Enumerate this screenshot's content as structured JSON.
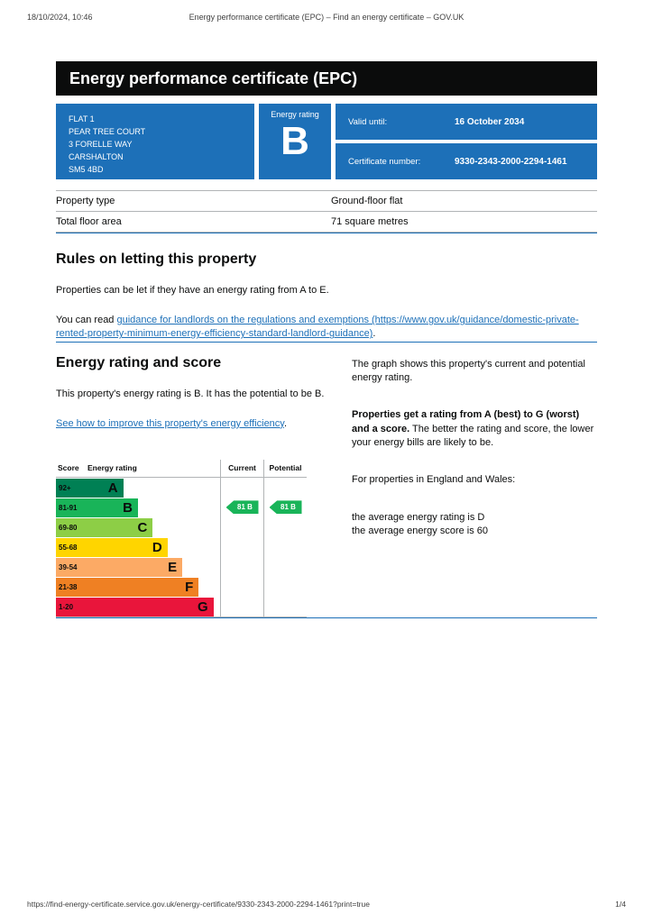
{
  "print_header": {
    "datetime": "18/10/2024, 10:46",
    "title": "Energy performance certificate (EPC) – Find an energy certificate – GOV.UK"
  },
  "banner": {
    "title": "Energy performance certificate (EPC)"
  },
  "summary": {
    "address_lines": [
      "FLAT 1",
      "PEAR TREE COURT",
      "3 FORELLE WAY",
      "CARSHALTON",
      "SM5 4BD"
    ],
    "energy_rating_label": "Energy rating",
    "energy_rating": "B",
    "valid_until_label": "Valid until:",
    "valid_until": "16 October 2034",
    "certificate_number_label": "Certificate number:",
    "certificate_number": "9330-2343-2000-2294-1461"
  },
  "property_table": {
    "rows": [
      {
        "label": "Property type",
        "value": "Ground-floor flat"
      },
      {
        "label": "Total floor area",
        "value": "71 square metres"
      }
    ]
  },
  "letting_rules": {
    "heading": "Rules on letting this property",
    "paragraph": "Properties can be let if they have an energy rating from A to E.",
    "link_intro": "You can read ",
    "link_text": "guidance for landlords on the regulations and exemptions (https://www.gov.uk/guidance/domestic-private-rented-property-minimum-energy-efficiency-standard-landlord-guidance)",
    "link_suffix": "."
  },
  "rating_section": {
    "heading": "Energy rating and score",
    "paragraph": "This property's energy rating is B. It has the potential to be B.",
    "link_text": "See how to improve this property's energy efficiency",
    "link_suffix": ".",
    "right_col": {
      "p1": "The graph shows this property's current and potential energy rating.",
      "p2_bold": "Properties get a rating from A (best) to G (worst) and a score.",
      "p2_rest": " The better the rating and score, the lower your energy bills are likely to be.",
      "p3": "For properties in England and Wales:",
      "p4_line1": "the average energy rating is D",
      "p4_line2": "the average energy score is 60"
    }
  },
  "chart_data": {
    "type": "epc-bands",
    "headers": {
      "score": "Score",
      "rating": "Energy rating",
      "current": "Current",
      "potential": "Potential"
    },
    "bands": [
      {
        "score": "92+",
        "letter": "A",
        "color": "#008054",
        "width_pct": 41
      },
      {
        "score": "81-91",
        "letter": "B",
        "color": "#19b459",
        "width_pct": 50
      },
      {
        "score": "69-80",
        "letter": "C",
        "color": "#8dce46",
        "width_pct": 59
      },
      {
        "score": "55-68",
        "letter": "D",
        "color": "#ffd500",
        "width_pct": 68
      },
      {
        "score": "39-54",
        "letter": "E",
        "color": "#fcaa65",
        "width_pct": 77
      },
      {
        "score": "21-38",
        "letter": "F",
        "color": "#ef8023",
        "width_pct": 87
      },
      {
        "score": "1-20",
        "letter": "G",
        "color": "#e9153b",
        "width_pct": 96
      }
    ],
    "current": {
      "score": 81,
      "letter": "B",
      "label": "81 B",
      "color": "#19b459",
      "band_index": 1
    },
    "potential": {
      "score": 81,
      "letter": "B",
      "label": "81 B",
      "color": "#19b459",
      "band_index": 1
    }
  },
  "print_footer": {
    "url": "https://find-energy-certificate.service.gov.uk/energy-certificate/9330-2343-2000-2294-1461?print=true",
    "page": "1/4"
  }
}
